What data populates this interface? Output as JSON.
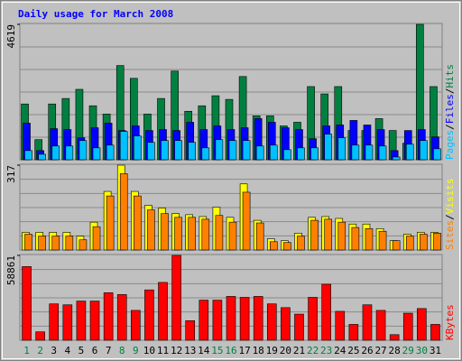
{
  "title": "Daily usage for March 2008",
  "days": [
    "1",
    "2",
    "3",
    "4",
    "5",
    "6",
    "7",
    "8",
    "9",
    "10",
    "11",
    "12",
    "13",
    "14",
    "15",
    "16",
    "17",
    "18",
    "19",
    "20",
    "21",
    "22",
    "23",
    "24",
    "25",
    "26",
    "27",
    "28",
    "29",
    "30",
    "31"
  ],
  "day_colors": [
    "#008040",
    "#008040",
    "#000000",
    "#000000",
    "#000000",
    "#000000",
    "#000000",
    "#008040",
    "#008040",
    "#000000",
    "#000000",
    "#000000",
    "#000000",
    "#000000",
    "#008040",
    "#008040",
    "#000000",
    "#000000",
    "#000000",
    "#000000",
    "#000000",
    "#008040",
    "#008040",
    "#000000",
    "#000000",
    "#000000",
    "#000000",
    "#000000",
    "#008040",
    "#008040",
    "#000000"
  ],
  "chart_data": [
    {
      "type": "bar",
      "ylim": [
        0,
        4619
      ],
      "yticks": [
        4619
      ],
      "separator": "/",
      "series": [
        {
          "name": "Hits",
          "color": "#008040",
          "values": [
            1903,
            686,
            1903,
            2090,
            2402,
            1841,
            1560,
            3214,
            2777,
            1560,
            2090,
            3026,
            1654,
            1841,
            2184,
            2059,
            2839,
            1498,
            1498,
            1154,
            1279,
            2496,
            2246,
            2496,
            998,
            998,
            1404,
            998,
            562,
            4619,
            2496
          ]
        },
        {
          "name": "Files",
          "color": "#0000ff",
          "values": [
            1248,
            312,
            1061,
            1030,
            749,
            1092,
            1248,
            998,
            1154,
            998,
            1030,
            998,
            1279,
            1030,
            1154,
            1030,
            1092,
            1404,
            1279,
            1092,
            1030,
            718,
            1154,
            1186,
            1342,
            1186,
            1030,
            312,
            998,
            1030,
            780
          ]
        },
        {
          "name": "Pages",
          "color": "#00c0ff",
          "values": [
            312,
            187,
            468,
            468,
            655,
            406,
            499,
            967,
            811,
            593,
            655,
            655,
            593,
            406,
            686,
            655,
            655,
            468,
            499,
            343,
            406,
            406,
            874,
            749,
            499,
            499,
            468,
            94,
            530,
            655,
            374
          ]
        }
      ]
    },
    {
      "type": "bar",
      "ylim": [
        0,
        317
      ],
      "yticks": [
        317
      ],
      "separator": "/",
      "series": [
        {
          "name": "Visits",
          "color": "#ffff00",
          "values": [
            66,
            66,
            66,
            66,
            52,
            104,
            219,
            317,
            219,
            167,
            157,
            136,
            132,
            125,
            160,
            122,
            247,
            111,
            42,
            35,
            63,
            122,
            125,
            118,
            97,
            97,
            80,
            35,
            59,
            66,
            66
          ]
        },
        {
          "name": "Sites",
          "color": "#ff8000",
          "values": [
            59,
            52,
            52,
            52,
            38,
            87,
            202,
            285,
            202,
            150,
            136,
            122,
            122,
            115,
            129,
            104,
            216,
            101,
            31,
            28,
            52,
            111,
            115,
            104,
            84,
            80,
            70,
            35,
            52,
            59,
            63
          ]
        }
      ]
    },
    {
      "type": "bar",
      "ylim": [
        0,
        58861
      ],
      "yticks": [
        58861
      ],
      "separator": "/",
      "series": [
        {
          "name": "KBytes",
          "color": "#ff0000",
          "values": [
            51113,
            5823,
            25233,
            24586,
            27174,
            27174,
            32997,
            31703,
            20704,
            34938,
            40114,
            58861,
            13587,
            27821,
            27821,
            30409,
            29762,
            30409,
            25233,
            22645,
            18116,
            29762,
            38820,
            20057,
            10999,
            24586,
            20704,
            3882,
            18763,
            21998,
            10999
          ]
        }
      ]
    }
  ]
}
